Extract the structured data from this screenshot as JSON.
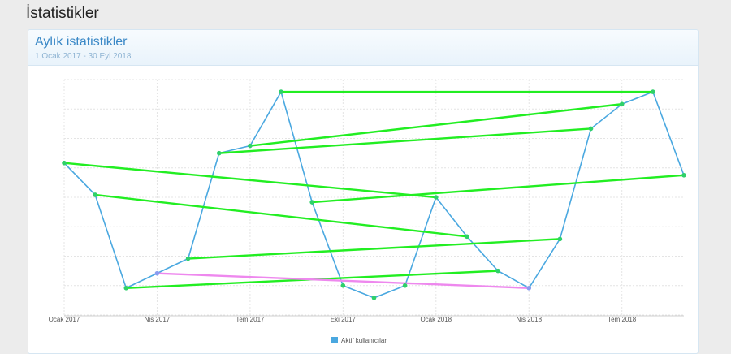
{
  "page": {
    "title": "İstatistikler"
  },
  "panel": {
    "title": "Aylık istatistikler",
    "subtitle": "1 Ocak 2017 - 30 Eyl 2018"
  },
  "chart_data": {
    "type": "line",
    "x_tick_labels": [
      "Ocak 2017",
      "Nis 2017",
      "Tem 2017",
      "Eki 2017",
      "Ocak 2018",
      "Nis 2018",
      "Tem 2018"
    ],
    "x": [
      "2017-01",
      "2017-02",
      "2017-03",
      "2017-04",
      "2017-05",
      "2017-06",
      "2017-07",
      "2017-08",
      "2017-09",
      "2017-10",
      "2017-11",
      "2017-12",
      "2018-01",
      "2018-02",
      "2018-03",
      "2018-04",
      "2018-05",
      "2018-06",
      "2018-07",
      "2018-08",
      "2018-09"
    ],
    "series": [
      {
        "name": "Aktif kullanıcılar",
        "color": "#4aa8e0",
        "values": [
          5.2,
          3.9,
          0.1,
          0.7,
          1.3,
          5.6,
          5.9,
          8.1,
          3.6,
          0.2,
          -0.3,
          0.2,
          3.8,
          2.2,
          0.8,
          0.1,
          2.1,
          6.6,
          7.6,
          8.1,
          4.7
        ]
      }
    ],
    "y_range": [
      -1,
      8.6
    ],
    "y_gridlines": 8,
    "grid": true,
    "legend_position": "bottom-center",
    "overlay_lines": [
      {
        "color": "#22ee22",
        "from": "2017-01",
        "to": "2018-01"
      },
      {
        "color": "#22ee22",
        "from": "2017-02",
        "to": "2018-02"
      },
      {
        "color": "#22ee22",
        "from": "2017-03",
        "to": "2018-03"
      },
      {
        "color": "#ee88ee",
        "from": "2017-04",
        "to": "2018-04"
      },
      {
        "color": "#22ee22",
        "from": "2017-05",
        "to": "2018-05"
      },
      {
        "color": "#22ee22",
        "from": "2017-06",
        "to": "2018-06"
      },
      {
        "color": "#22ee22",
        "from": "2017-07",
        "to": "2018-07"
      },
      {
        "color": "#22ee22",
        "from": "2017-08",
        "to": "2018-08"
      },
      {
        "color": "#22ee22",
        "from": "2017-09",
        "to": "2018-09"
      }
    ]
  }
}
